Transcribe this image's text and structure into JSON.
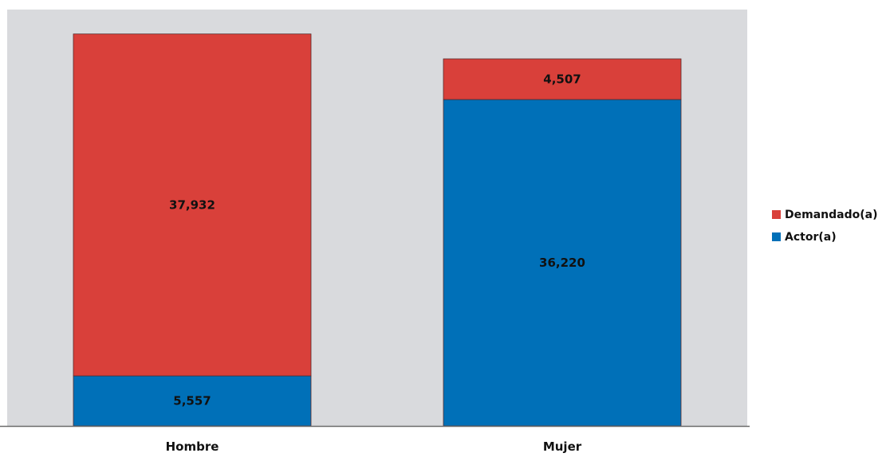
{
  "chart_data": {
    "type": "bar",
    "stacked": true,
    "categories": [
      "Hombre",
      "Mujer"
    ],
    "series": [
      {
        "name": "Actor(a)",
        "values": [
          5557,
          36220
        ],
        "labels": [
          "5,557",
          "36,220"
        ],
        "color": "#0070b8"
      },
      {
        "name": "Demandado(a)",
        "values": [
          37932,
          4507
        ],
        "labels": [
          "37,932",
          "4,507"
        ],
        "color": "#d9403a"
      }
    ],
    "ylim": [
      0,
      46200
    ],
    "grid": false,
    "legend": "right",
    "plot_background": "#d9dadd",
    "title": "",
    "xlabel": "",
    "ylabel": ""
  }
}
